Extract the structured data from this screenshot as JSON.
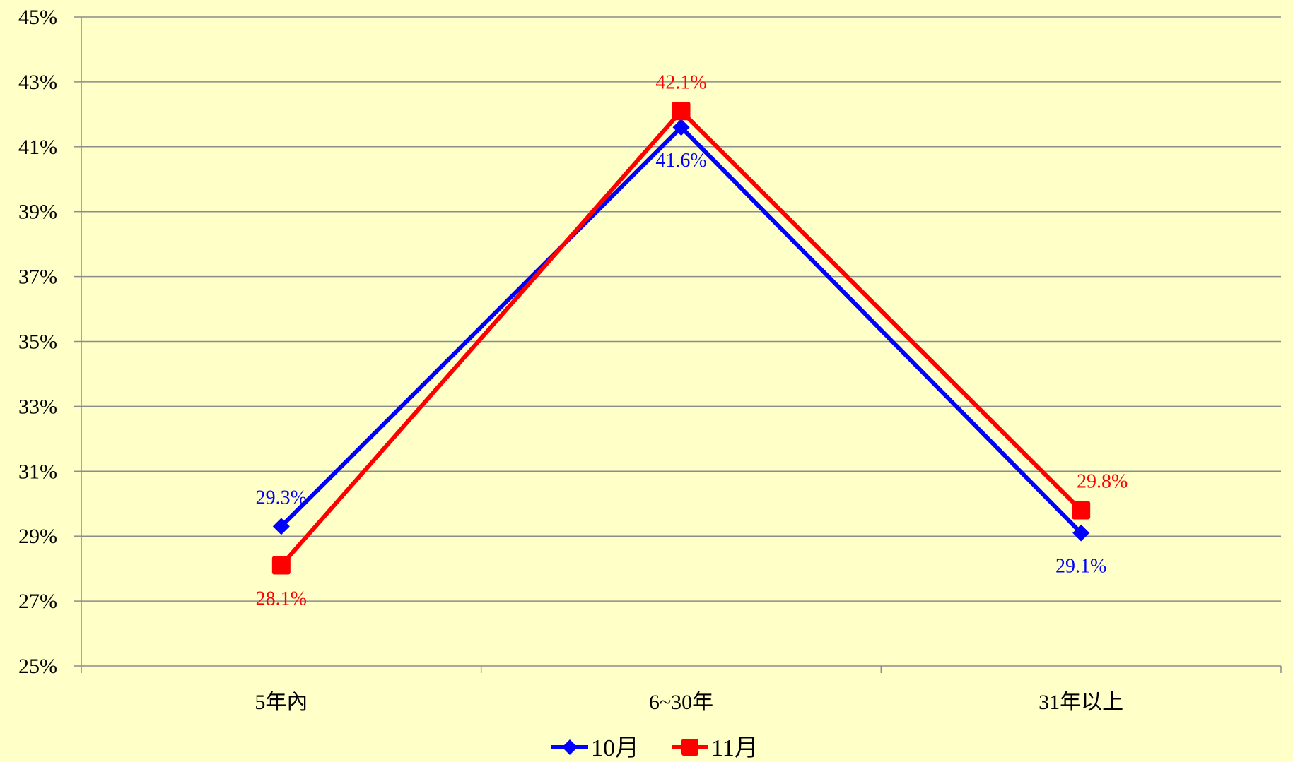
{
  "chart_data": {
    "type": "line",
    "categories": [
      "5年內",
      "6~30年",
      "31年以上"
    ],
    "series": [
      {
        "name": "10月",
        "values": [
          29.3,
          41.6,
          29.1
        ],
        "labels": [
          "29.3%",
          "41.6%",
          "29.1%"
        ],
        "color": "#0000FF",
        "marker": "diamond"
      },
      {
        "name": "11月",
        "values": [
          28.1,
          42.1,
          29.8
        ],
        "labels": [
          "28.1%",
          "42.1%",
          "29.8%"
        ],
        "color": "#FF0000",
        "marker": "square"
      }
    ],
    "ylim": [
      25,
      45
    ],
    "y_ticks": [
      "25%",
      "27%",
      "29%",
      "31%",
      "33%",
      "35%",
      "37%",
      "39%",
      "41%",
      "43%",
      "45%"
    ],
    "title": "",
    "xlabel": "",
    "ylabel": "",
    "grid": true,
    "legend": "bottom-center",
    "background": "#FFFFC8"
  }
}
